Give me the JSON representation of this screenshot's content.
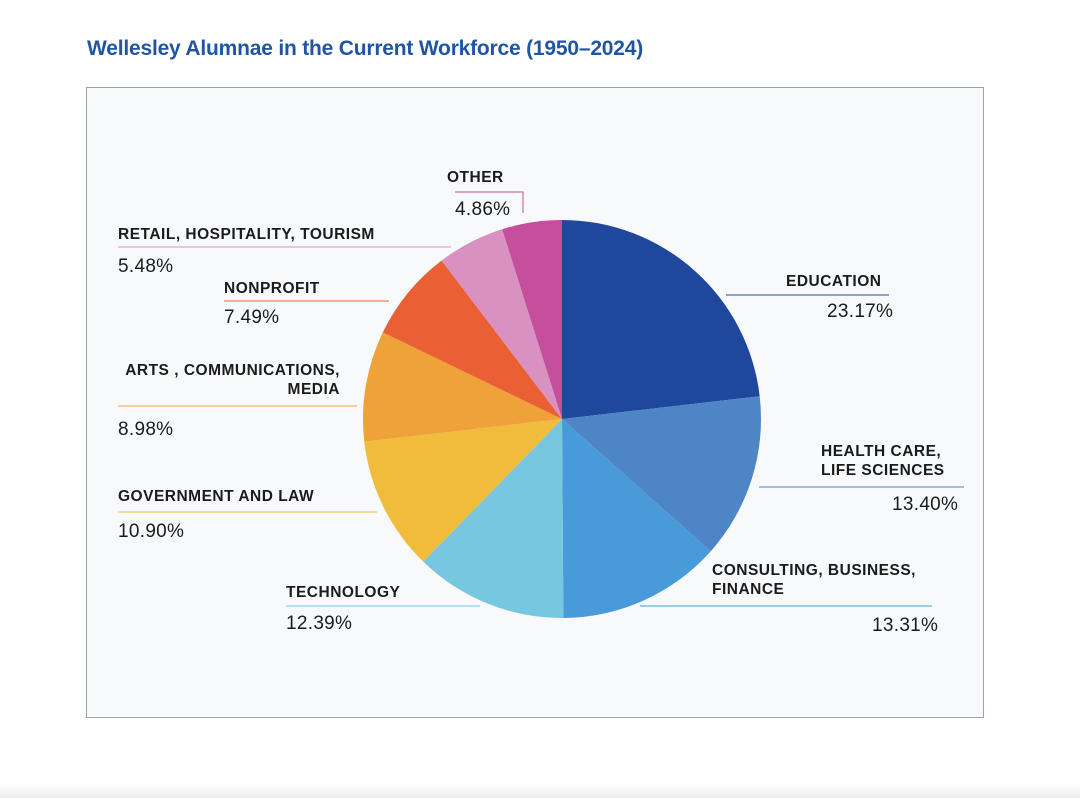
{
  "title": "Wellesley Alumnae in the Current Workforce (1950–2024)",
  "chart_data": {
    "type": "pie",
    "title": "Wellesley Alumnae in the Current Workforce (1950–2024)",
    "slices": [
      {
        "label": "EDUCATION",
        "value": 23.17,
        "display": "23.17%",
        "color": "#1f489c"
      },
      {
        "label": "HEALTH CARE,\nLIFE SCIENCES",
        "value": 13.4,
        "display": "13.40%",
        "color": "#4d85c7"
      },
      {
        "label": "CONSULTING, BUSINESS,\nFINANCE",
        "value": 13.31,
        "display": "13.31%",
        "color": "#489bd8"
      },
      {
        "label": "TECHNOLOGY",
        "value": 12.39,
        "display": "12.39%",
        "color": "#77c7e1"
      },
      {
        "label": "GOVERNMENT AND LAW",
        "value": 10.9,
        "display": "10.90%",
        "color": "#f1bc3b"
      },
      {
        "label": "ARTS , COMMUNICATIONS,\nMEDIA",
        "value": 8.98,
        "display": "8.98%",
        "color": "#efa23a"
      },
      {
        "label": "NONPROFIT",
        "value": 7.49,
        "display": "7.49%",
        "color": "#ea5f33"
      },
      {
        "label": "RETAIL, HOSPITALITY, TOURISM",
        "value": 5.48,
        "display": "5.48%",
        "color": "#d891c1"
      },
      {
        "label": "OTHER",
        "value": 4.86,
        "display": "4.86%",
        "color": "#c54f9d"
      }
    ]
  }
}
